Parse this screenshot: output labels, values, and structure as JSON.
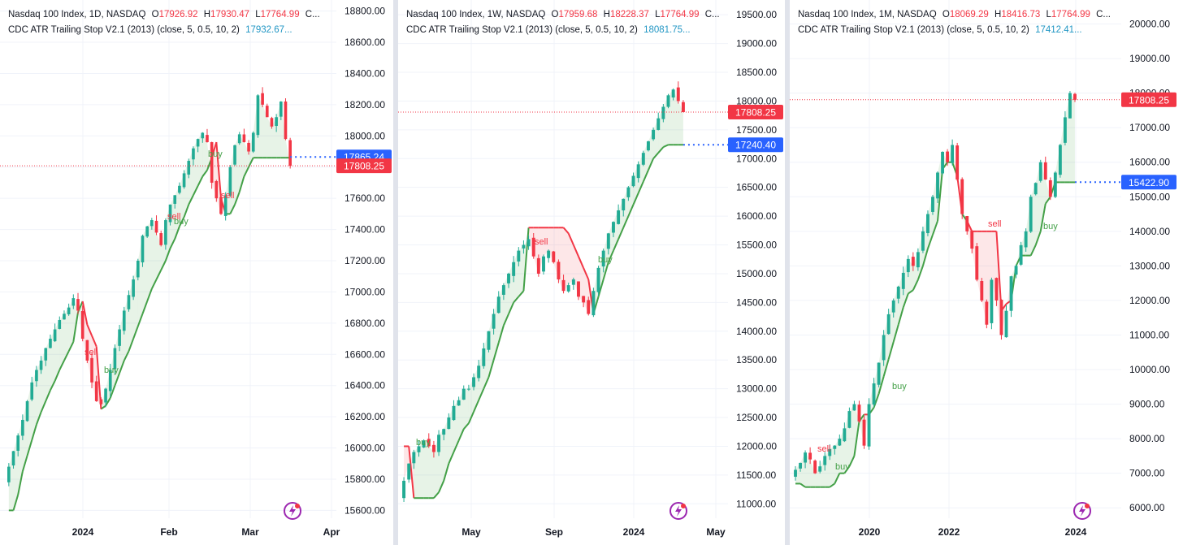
{
  "colors": {
    "up": "#22ab94",
    "down": "#f23645",
    "buy_line": "#43a047",
    "sell_line": "#f23645",
    "buy_fill": "rgba(67,160,71,0.13)",
    "sell_fill": "rgba(242,54,69,0.12)",
    "stop_label": "#2962ff",
    "last_label": "#f23645",
    "grid": "#f0f3fa",
    "axis_text": "#131722",
    "logo": "#9c27b0"
  },
  "panels": [
    {
      "title": "Nasdaq 100 Index, 1D, NASDAQ",
      "o_label": "O",
      "o": "17926.92",
      "h_label": "H",
      "h": "17930.47",
      "l_label": "L",
      "l": "17764.99",
      "c_label": "C...",
      "indicator": "CDC ATR Trailing Stop V2.1 (2013) (close, 5, 0.5, 10, 2)",
      "indicator_value": "17932.67...",
      "y_ticks": [
        "18800.00",
        "18600.00",
        "18400.00",
        "18200.00",
        "18000.00",
        "17800.00",
        "17600.00",
        "17400.00",
        "17200.00",
        "17000.00",
        "16800.00",
        "16600.00",
        "16400.00",
        "16200.00",
        "16000.00",
        "15800.00",
        "15600.00"
      ],
      "x_ticks": [
        "2024",
        "Feb",
        "Mar",
        "Apr"
      ],
      "stop_label": "17865.24",
      "last_label": "17808.25",
      "signals": [
        "sell",
        "buy",
        "sell",
        "buy",
        "sell",
        "buy"
      ],
      "logo": "tradingview-icon",
      "chart_data": {
        "type": "candlestick",
        "timeframe": "1D",
        "ylim": [
          15550,
          18850
        ],
        "stop_value": 17865.24,
        "last_value": 17808.25,
        "closes": [
          15880,
          15980,
          16080,
          16180,
          16300,
          16420,
          16500,
          16560,
          16640,
          16700,
          16760,
          16820,
          16860,
          16900,
          16960,
          16880,
          16700,
          16560,
          16420,
          16300,
          16280,
          16380,
          16500,
          16640,
          16760,
          16880,
          16980,
          17080,
          17200,
          17360,
          17420,
          17460,
          17380,
          17300,
          17460,
          17560,
          17620,
          17680,
          17760,
          17840,
          17920,
          17980,
          18020,
          17960,
          17700,
          17600,
          17500,
          17620,
          17800,
          17940,
          18010,
          17960,
          17900,
          18020,
          18260,
          18200,
          18120,
          18060,
          18120,
          18220,
          17980,
          17808
        ],
        "stop_line": [
          15600,
          15600,
          15700,
          15850,
          15950,
          16050,
          16150,
          16230,
          16300,
          16370,
          16430,
          16500,
          16560,
          16620,
          16680,
          16870,
          16940,
          16790,
          16720,
          16650,
          16250,
          16270,
          16320,
          16400,
          16480,
          16560,
          16620,
          16700,
          16780,
          16860,
          16940,
          17020,
          17080,
          17140,
          17200,
          17280,
          17340,
          17420,
          17480,
          17560,
          17620,
          17680,
          17740,
          17780,
          17860,
          17960,
          17600,
          17500,
          17500,
          17560,
          17640,
          17740,
          17800,
          17860,
          17860,
          17860,
          17860,
          17860,
          17860,
          17860,
          17860,
          17860
        ]
      }
    },
    {
      "title": "Nasdaq 100 Index, 1W, NASDAQ",
      "o_label": "O",
      "o": "17959.68",
      "h_label": "H",
      "h": "18228.37",
      "l_label": "L",
      "l": "17764.99",
      "c_label": "C...",
      "indicator": "CDC ATR Trailing Stop V2.1 (2013) (close, 5, 0.5, 10, 2)",
      "indicator_value": "18081.75...",
      "y_ticks": [
        "19500.00",
        "19000.00",
        "18500.00",
        "18000.00",
        "17500.00",
        "17000.00",
        "16500.00",
        "16000.00",
        "15500.00",
        "15000.00",
        "14500.00",
        "14000.00",
        "13500.00",
        "13000.00",
        "12500.00",
        "12000.00",
        "11500.00",
        "11000.00"
      ],
      "x_ticks": [
        "May",
        "Sep",
        "2024",
        "May"
      ],
      "stop_label": "17240.40",
      "last_label": "17808.25",
      "signals": [
        "buy",
        "sell",
        "buy"
      ],
      "logo": "tradingview-icon",
      "chart_data": {
        "type": "candlestick",
        "timeframe": "1W",
        "ylim": [
          10750,
          19700
        ],
        "stop_value": 17240.4,
        "last_value": 17808.25,
        "closes": [
          11400,
          11700,
          11900,
          12000,
          12100,
          12000,
          11900,
          12200,
          12300,
          12500,
          12700,
          12800,
          13000,
          13000,
          13200,
          13400,
          13700,
          14000,
          14300,
          14600,
          14800,
          15000,
          15200,
          15400,
          15500,
          15600,
          15300,
          15000,
          15300,
          15400,
          15200,
          14900,
          14700,
          14800,
          14900,
          14600,
          14500,
          14300,
          14700,
          15100,
          15400,
          15700,
          15900,
          16100,
          16300,
          16500,
          16700,
          16900,
          17100,
          17300,
          17500,
          17700,
          17900,
          18100,
          18200,
          18000,
          17808
        ],
        "stop_line": [
          12000,
          12000,
          11100,
          11100,
          11100,
          11100,
          11100,
          11200,
          11400,
          11700,
          11900,
          12100,
          12300,
          12400,
          12600,
          12800,
          13000,
          13200,
          13500,
          13800,
          14100,
          14300,
          14500,
          14600,
          14700,
          15800,
          15800,
          15800,
          15800,
          15800,
          15800,
          15800,
          15800,
          15700,
          15500,
          15300,
          15100,
          14900,
          14300,
          14600,
          14900,
          15200,
          15400,
          15600,
          15800,
          16000,
          16200,
          16400,
          16600,
          16800,
          17000,
          17100,
          17200,
          17240,
          17240,
          17240,
          17240
        ]
      }
    },
    {
      "title": "Nasdaq 100 Index, 1M, NASDAQ",
      "o_label": "O",
      "o": "18069.29",
      "h_label": "H",
      "h": "18416.73",
      "l_label": "L",
      "l": "17764.99",
      "c_label": "C...",
      "indicator": "CDC ATR Trailing Stop V2.1 (2013) (close, 5, 0.5, 10, 2)",
      "indicator_value": "17412.41...",
      "y_ticks": [
        "20000.00",
        "19000.00",
        "18000.00",
        "17000.00",
        "16000.00",
        "15000.00",
        "14000.00",
        "13000.00",
        "12000.00",
        "11000.00",
        "10000.00",
        "9000.00",
        "8000.00",
        "7000.00",
        "6000.00"
      ],
      "x_ticks": [
        "2020",
        "2022",
        "2024"
      ],
      "stop_label": "15422.90",
      "last_label": "17808.25",
      "signals": [
        "sell",
        "buy",
        "buy",
        "sell",
        "buy"
      ],
      "logo": "tradingview-icon",
      "chart_data": {
        "type": "candlestick",
        "timeframe": "1M",
        "ylim": [
          5700,
          20600
        ],
        "stop_value": 15422.9,
        "last_value": 17808.25,
        "closes": [
          7100,
          7300,
          7600,
          7400,
          7000,
          7200,
          7500,
          7700,
          7800,
          8000,
          8300,
          8800,
          9000,
          8500,
          7800,
          9000,
          9600,
          10200,
          11000,
          11600,
          12000,
          12400,
          12800,
          13200,
          13000,
          13400,
          14000,
          14500,
          15000,
          15700,
          16300,
          16000,
          16500,
          15500,
          14500,
          14000,
          13500,
          12600,
          12000,
          11300,
          12600,
          12000,
          11000,
          11700,
          12700,
          13000,
          13600,
          14000,
          15000,
          15400,
          16000,
          15500,
          15000,
          15700,
          16500,
          17300,
          18000,
          17808
        ],
        "stop_line": [
          6700,
          6700,
          6600,
          6600,
          6600,
          6600,
          6600,
          6600,
          6700,
          7000,
          7000,
          7200,
          7500,
          8500,
          8700,
          8700,
          8900,
          9300,
          9800,
          10300,
          10800,
          11300,
          11800,
          12200,
          12300,
          12600,
          13000,
          13500,
          13900,
          14300,
          15800,
          16000,
          16000,
          15600,
          14500,
          14300,
          14000,
          14000,
          14000,
          14000,
          14000,
          14000,
          11700,
          11900,
          12000,
          13000,
          13300,
          13300,
          13300,
          13600,
          14000,
          14800,
          15000,
          15420,
          15420,
          15420,
          15420,
          15420
        ]
      }
    }
  ]
}
